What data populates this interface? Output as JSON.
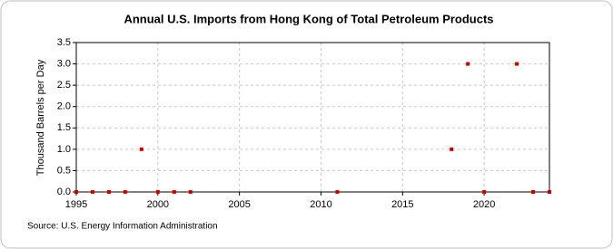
{
  "chart_data": {
    "type": "scatter",
    "title": "Annual U.S. Imports from Hong Kong of Total Petroleum Products",
    "y_label": "Thousand Barrels per Day",
    "source": "Source: U.S. Energy Information Administration",
    "x": [
      1995,
      1996,
      1997,
      1998,
      1999,
      2000,
      2001,
      2002,
      2011,
      2018,
      2019,
      2020,
      2022,
      2023,
      2024
    ],
    "values": [
      0,
      0,
      0,
      0,
      1,
      0,
      0,
      0,
      0,
      1,
      3,
      0,
      3,
      0,
      0
    ],
    "color": "#cc0000",
    "xlim": [
      1995,
      2024
    ],
    "xticks": [
      1995,
      2000,
      2005,
      2010,
      2015,
      2020
    ],
    "ylim": [
      0,
      3.5
    ],
    "yticks": [
      {
        "value": 0,
        "label": "0.0"
      },
      0.5,
      {
        "value": 1,
        "label": "1.0"
      },
      1.5,
      {
        "value": 2,
        "label": "2.0"
      },
      2.5,
      {
        "value": 3,
        "label": "3.0"
      },
      3.5
    ],
    "grid": true
  }
}
